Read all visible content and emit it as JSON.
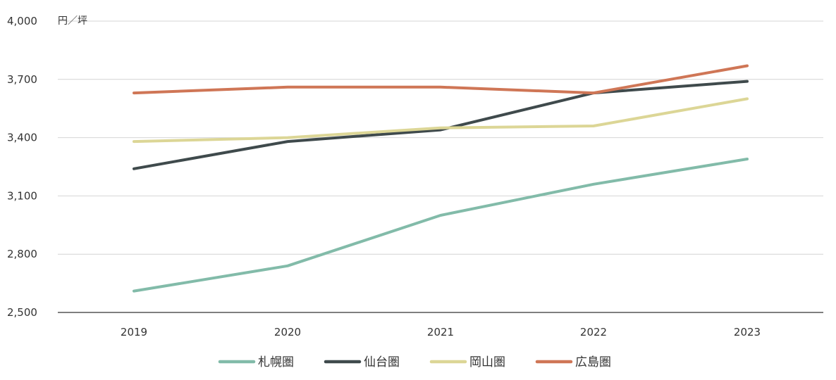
{
  "chart_data": {
    "type": "line",
    "unit_label": "円／坪",
    "categories": [
      "2019",
      "2020",
      "2021",
      "2022",
      "2023"
    ],
    "yticks": [
      "2,500",
      "2,800",
      "3,100",
      "3,400",
      "3,700",
      "4,000"
    ],
    "ylim": [
      2500,
      4000
    ],
    "grid": true,
    "legend_position": "bottom",
    "series": [
      {
        "name": "札幌圏",
        "color": "#82bba9",
        "values": [
          2610,
          2740,
          3000,
          3160,
          3290
        ]
      },
      {
        "name": "仙台圏",
        "color": "#3f4a4c",
        "values": [
          3240,
          3380,
          3440,
          3630,
          3690
        ]
      },
      {
        "name": "岡山圏",
        "color": "#dcd696",
        "values": [
          3380,
          3400,
          3450,
          3460,
          3600
        ]
      },
      {
        "name": "広島圏",
        "color": "#cf7656",
        "values": [
          3630,
          3660,
          3660,
          3630,
          3770
        ]
      }
    ]
  }
}
